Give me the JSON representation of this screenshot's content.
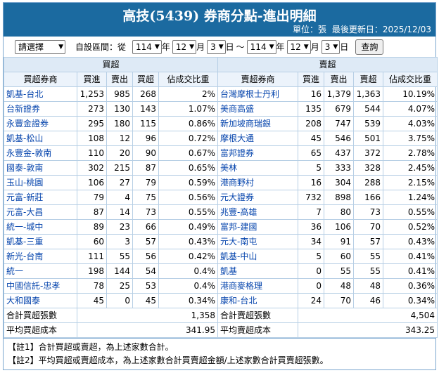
{
  "header": {
    "title": "高技(5439) 券商分點-進出明細",
    "unit": "單位：張",
    "updated": "最後更新日：2025/12/03"
  },
  "filter": {
    "select_default": "請選擇",
    "range_label": "自設區間：從",
    "from_year": "114",
    "year_suffix1": "年",
    "from_month": "12",
    "month_suffix1": "月",
    "from_day": "3",
    "day_suffix1": "日",
    "tilde": "～",
    "to_year": "114",
    "year_suffix2": "年",
    "to_month": "12",
    "month_suffix2": "月",
    "to_day": "3",
    "day_suffix2": "日",
    "query_label": "查詢"
  },
  "table": {
    "buy_group": "買超",
    "sell_group": "賣超",
    "buy_headers": [
      "買超券商",
      "買進",
      "賣出",
      "買超",
      "佔成交比重"
    ],
    "sell_headers": [
      "賣超券商",
      "買進",
      "賣出",
      "賣超",
      "佔成交比重"
    ],
    "rows": [
      {
        "b": [
          "凱基-台北",
          "1,253",
          "985",
          "268",
          "2%"
        ],
        "s": [
          "台灣摩根士丹利",
          "16",
          "1,379",
          "1,363",
          "10.19%"
        ]
      },
      {
        "b": [
          "台新證券",
          "273",
          "130",
          "143",
          "1.07%"
        ],
        "s": [
          "美商高盛",
          "135",
          "679",
          "544",
          "4.07%"
        ]
      },
      {
        "b": [
          "永豐金證券",
          "295",
          "180",
          "115",
          "0.86%"
        ],
        "s": [
          "新加坡商瑞銀",
          "208",
          "747",
          "539",
          "4.03%"
        ]
      },
      {
        "b": [
          "凱基-松山",
          "108",
          "12",
          "96",
          "0.72%"
        ],
        "s": [
          "摩根大通",
          "45",
          "546",
          "501",
          "3.75%"
        ]
      },
      {
        "b": [
          "永豐金-敦南",
          "110",
          "20",
          "90",
          "0.67%"
        ],
        "s": [
          "富邦證券",
          "65",
          "437",
          "372",
          "2.78%"
        ]
      },
      {
        "b": [
          "國泰-敦南",
          "302",
          "215",
          "87",
          "0.65%"
        ],
        "s": [
          "美林",
          "5",
          "333",
          "328",
          "2.45%"
        ]
      },
      {
        "b": [
          "玉山-桃園",
          "106",
          "27",
          "79",
          "0.59%"
        ],
        "s": [
          "港商野村",
          "16",
          "304",
          "288",
          "2.15%"
        ]
      },
      {
        "b": [
          "元富-新莊",
          "79",
          "4",
          "75",
          "0.56%"
        ],
        "s": [
          "元大證券",
          "732",
          "898",
          "166",
          "1.24%"
        ]
      },
      {
        "b": [
          "元富-大昌",
          "87",
          "14",
          "73",
          "0.55%"
        ],
        "s": [
          "兆豐-高雄",
          "7",
          "80",
          "73",
          "0.55%"
        ]
      },
      {
        "b": [
          "統一-城中",
          "89",
          "23",
          "66",
          "0.49%"
        ],
        "s": [
          "富邦-建國",
          "36",
          "106",
          "70",
          "0.52%"
        ]
      },
      {
        "b": [
          "凱基-三重",
          "60",
          "3",
          "57",
          "0.43%"
        ],
        "s": [
          "元大-南屯",
          "34",
          "91",
          "57",
          "0.43%"
        ]
      },
      {
        "b": [
          "新光-台南",
          "111",
          "55",
          "56",
          "0.42%"
        ],
        "s": [
          "凱基-中山",
          "5",
          "60",
          "55",
          "0.41%"
        ]
      },
      {
        "b": [
          "統一",
          "198",
          "144",
          "54",
          "0.4%"
        ],
        "s": [
          "凱基",
          "0",
          "55",
          "55",
          "0.41%"
        ]
      },
      {
        "b": [
          "中國信託-忠孝",
          "78",
          "25",
          "53",
          "0.4%"
        ],
        "s": [
          "港商麥格理",
          "0",
          "48",
          "48",
          "0.36%"
        ]
      },
      {
        "b": [
          "大和國泰",
          "45",
          "0",
          "45",
          "0.34%"
        ],
        "s": [
          "康和-台北",
          "24",
          "70",
          "46",
          "0.34%"
        ]
      }
    ],
    "total_buy_label": "合計買超張數",
    "total_buy_value": "1,358",
    "total_sell_label": "合計賣超張數",
    "total_sell_value": "4,504",
    "avg_buy_label": "平均買超成本",
    "avg_buy_value": "341.95",
    "avg_sell_label": "平均賣超成本",
    "avg_sell_value": "343.25"
  },
  "notes": [
    "【註1】合計買超或賣超，為上述家數合計。",
    "【註2】平均買超或賣超成本，為上述家數合計買賣超金額/上述家數合計買賣超張數。"
  ]
}
